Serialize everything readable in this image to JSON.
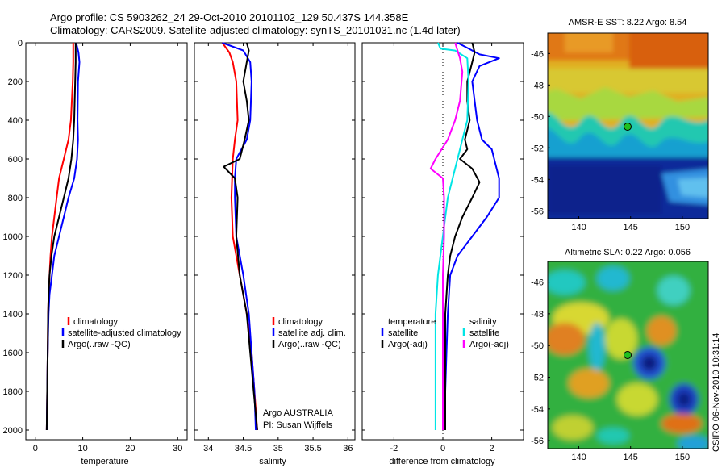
{
  "titles": {
    "line1": "Argo profile: CS 5903262_24 29-Oct-2010 20101102_129 50.437S 144.358E",
    "line2": "Climatology: CARS2009. Satellite-adjusted climatology: synTS_20101031.nc (1.4d later)"
  },
  "colors": {
    "climatology": "#ff0000",
    "satellite": "#0000ff",
    "argo": "#000000",
    "argo_adj_salinity": "#ff00ff",
    "satellite_salinity": "#00e5e5",
    "zero_line": "#000000"
  },
  "chart_data": [
    {
      "type": "line",
      "panel": "temperature",
      "xlabel": "temperature",
      "xlim": [
        -2,
        32
      ],
      "ylim": [
        2050,
        0
      ],
      "y_reversed": true,
      "xticks": [
        "0",
        "10",
        "20",
        "30"
      ],
      "yticks": [
        "0",
        "200",
        "400",
        "600",
        "800",
        "1000",
        "1200",
        "1400",
        "1600",
        "1800",
        "2000"
      ],
      "legend": {
        "placement": "lower-left",
        "entries": [
          "climatology",
          "satellite-adjusted climatology",
          "Argo(..raw -QC)"
        ]
      },
      "series": [
        {
          "name": "climatology",
          "color_key": "climatology",
          "points": [
            [
              8.0,
              0
            ],
            [
              8.0,
              100
            ],
            [
              7.9,
              200
            ],
            [
              7.5,
              400
            ],
            [
              7.0,
              500
            ],
            [
              6.0,
              600
            ],
            [
              5.0,
              700
            ],
            [
              4.5,
              800
            ],
            [
              4.0,
              900
            ],
            [
              3.5,
              1000
            ],
            [
              3.2,
              1100
            ],
            [
              3.0,
              1200
            ],
            [
              2.8,
              1300
            ],
            [
              2.7,
              1400
            ],
            [
              2.6,
              1600
            ],
            [
              2.5,
              1800
            ],
            [
              2.4,
              2000
            ]
          ]
        },
        {
          "name": "satellite-adjusted climatology",
          "color_key": "satellite",
          "points": [
            [
              8.6,
              0
            ],
            [
              9.1,
              50
            ],
            [
              9.3,
              100
            ],
            [
              9.0,
              200
            ],
            [
              8.9,
              400
            ],
            [
              9.0,
              500
            ],
            [
              8.8,
              600
            ],
            [
              8.2,
              700
            ],
            [
              7.0,
              800
            ],
            [
              6.0,
              900
            ],
            [
              5.0,
              1000
            ],
            [
              4.0,
              1100
            ],
            [
              3.5,
              1200
            ],
            [
              3.0,
              1300
            ],
            [
              2.8,
              1400
            ],
            [
              2.6,
              1600
            ],
            [
              2.5,
              1800
            ],
            [
              2.4,
              2000
            ]
          ]
        },
        {
          "name": "Argo(..raw -QC)",
          "color_key": "argo",
          "points": [
            [
              8.5,
              0
            ],
            [
              8.5,
              100
            ],
            [
              8.4,
              200
            ],
            [
              8.2,
              400
            ],
            [
              8.0,
              500
            ],
            [
              7.6,
              600
            ],
            [
              7.0,
              700
            ],
            [
              6.0,
              800
            ],
            [
              5.0,
              900
            ],
            [
              4.0,
              1000
            ],
            [
              3.4,
              1100
            ],
            [
              3.0,
              1200
            ],
            [
              2.8,
              1300
            ],
            [
              2.7,
              1400
            ],
            [
              2.6,
              1600
            ],
            [
              2.5,
              1800
            ],
            [
              2.4,
              2000
            ]
          ]
        }
      ]
    },
    {
      "type": "line",
      "panel": "salinity",
      "xlabel": "salinity",
      "xlim": [
        33.8,
        36.1
      ],
      "ylim": [
        2050,
        0
      ],
      "y_reversed": true,
      "xticks": [
        "34",
        "34.5",
        "35",
        "35.5",
        "36"
      ],
      "legend": {
        "placement": "lower-left",
        "entries": [
          "climatology",
          "satellite adj. clim.",
          "Argo(..raw -QC)"
        ]
      },
      "annotations": [
        "Argo AUSTRALIA",
        "PI: Susan Wijffels"
      ],
      "series": [
        {
          "name": "climatology",
          "color_key": "climatology",
          "points": [
            [
              34.2,
              0
            ],
            [
              34.3,
              50
            ],
            [
              34.35,
              100
            ],
            [
              34.4,
              200
            ],
            [
              34.42,
              400
            ],
            [
              34.38,
              500
            ],
            [
              34.35,
              600
            ],
            [
              34.33,
              800
            ],
            [
              34.35,
              1000
            ],
            [
              34.45,
              1200
            ],
            [
              34.55,
              1400
            ],
            [
              34.62,
              1600
            ],
            [
              34.66,
              1800
            ],
            [
              34.7,
              2000
            ]
          ]
        },
        {
          "name": "satellite adj. clim.",
          "color_key": "satellite",
          "points": [
            [
              34.2,
              0
            ],
            [
              34.5,
              40
            ],
            [
              34.6,
              100
            ],
            [
              34.62,
              200
            ],
            [
              34.6,
              400
            ],
            [
              34.55,
              500
            ],
            [
              34.4,
              600
            ],
            [
              34.38,
              700
            ],
            [
              34.38,
              800
            ],
            [
              34.4,
              1000
            ],
            [
              34.5,
              1200
            ],
            [
              34.58,
              1400
            ],
            [
              34.62,
              1600
            ],
            [
              34.66,
              1800
            ],
            [
              34.68,
              2000
            ]
          ]
        },
        {
          "name": "Argo(..raw -QC)",
          "color_key": "argo",
          "points": [
            [
              34.55,
              0
            ],
            [
              34.58,
              40
            ],
            [
              34.55,
              100
            ],
            [
              34.5,
              200
            ],
            [
              34.55,
              300
            ],
            [
              34.58,
              400
            ],
            [
              34.52,
              500
            ],
            [
              34.45,
              600
            ],
            [
              34.22,
              640
            ],
            [
              34.38,
              700
            ],
            [
              34.42,
              800
            ],
            [
              34.4,
              1000
            ],
            [
              34.45,
              1200
            ],
            [
              34.55,
              1400
            ],
            [
              34.6,
              1600
            ],
            [
              34.65,
              1800
            ],
            [
              34.7,
              2000
            ]
          ]
        }
      ]
    },
    {
      "type": "line",
      "panel": "difference",
      "xlabel": "difference from climatology",
      "xlim": [
        -3.3,
        3.3
      ],
      "ylim": [
        2050,
        0
      ],
      "y_reversed": true,
      "xticks": [
        "-2",
        "0",
        "2"
      ],
      "legend": {
        "placement": "lower-center",
        "groups": [
          {
            "header": "temperature",
            "entries": [
              "satellite",
              "Argo(-adj)"
            ]
          },
          {
            "header": "salinity",
            "entries": [
              "satellite",
              "Argo(-adj)"
            ]
          }
        ]
      },
      "series": [
        {
          "name": "temperature satellite",
          "color_key": "satellite",
          "points": [
            [
              0.6,
              0
            ],
            [
              0.9,
              20
            ],
            [
              1.5,
              60
            ],
            [
              2.3,
              80
            ],
            [
              1.5,
              120
            ],
            [
              1.2,
              200
            ],
            [
              1.4,
              400
            ],
            [
              1.6,
              500
            ],
            [
              2.0,
              550
            ],
            [
              2.3,
              700
            ],
            [
              2.3,
              800
            ],
            [
              1.8,
              900
            ],
            [
              1.2,
              1000
            ],
            [
              0.6,
              1100
            ],
            [
              0.3,
              1200
            ],
            [
              0.2,
              1400
            ],
            [
              0.15,
              1600
            ],
            [
              0.1,
              1800
            ],
            [
              0.1,
              2000
            ]
          ]
        },
        {
          "name": "temperature Argo(-adj)",
          "color_key": "argo",
          "points": [
            [
              1.2,
              0
            ],
            [
              1.3,
              50
            ],
            [
              1.2,
              100
            ],
            [
              1.0,
              200
            ],
            [
              1.0,
              300
            ],
            [
              1.1,
              400
            ],
            [
              0.9,
              500
            ],
            [
              1.0,
              550
            ],
            [
              0.7,
              600
            ],
            [
              1.2,
              650
            ],
            [
              1.5,
              720
            ],
            [
              1.2,
              800
            ],
            [
              0.8,
              900
            ],
            [
              0.5,
              1000
            ],
            [
              0.3,
              1100
            ],
            [
              0.2,
              1200
            ],
            [
              0.1,
              1400
            ],
            [
              0.1,
              1600
            ],
            [
              0.1,
              1800
            ],
            [
              0.1,
              2000
            ]
          ]
        },
        {
          "name": "salinity satellite",
          "color_key": "satellite_salinity",
          "points": [
            [
              -0.2,
              0
            ],
            [
              -0.1,
              30
            ],
            [
              0.5,
              40
            ],
            [
              1.0,
              80
            ],
            [
              1.05,
              200
            ],
            [
              1.0,
              400
            ],
            [
              0.8,
              500
            ],
            [
              0.6,
              600
            ],
            [
              0.4,
              700
            ],
            [
              0.2,
              800
            ],
            [
              0.0,
              1000
            ],
            [
              -0.2,
              1200
            ],
            [
              -0.3,
              1400
            ],
            [
              -0.3,
              1600
            ],
            [
              -0.3,
              1800
            ],
            [
              -0.3,
              2000
            ]
          ]
        },
        {
          "name": "salinity Argo(-adj)",
          "color_key": "argo_adj_salinity",
          "points": [
            [
              0.5,
              0
            ],
            [
              0.7,
              80
            ],
            [
              0.8,
              150
            ],
            [
              0.7,
              300
            ],
            [
              0.5,
              400
            ],
            [
              0.2,
              500
            ],
            [
              -0.3,
              600
            ],
            [
              -0.5,
              650
            ],
            [
              0.0,
              700
            ],
            [
              0.05,
              800
            ],
            [
              0.05,
              1000
            ],
            [
              0.0,
              1200
            ],
            [
              0.0,
              1400
            ],
            [
              0.0,
              1600
            ],
            [
              0.0,
              1800
            ],
            [
              0.0,
              2000
            ]
          ]
        }
      ]
    },
    {
      "type": "heatmap",
      "panel": "sst-map",
      "title": "AMSR-E SST: 8.22 Argo: 8.54",
      "xticks": [
        "140",
        "145",
        "150"
      ],
      "yticks": [
        "-46",
        "-48",
        "-50",
        "-52",
        "-54",
        "-56"
      ],
      "xlim": [
        137,
        152.5
      ],
      "ylim": [
        -56.5,
        -44.7
      ],
      "marker": {
        "lon": 144.358,
        "lat": -50.437
      }
    },
    {
      "type": "heatmap",
      "panel": "sla-map",
      "title": "Altimetric SLA: 0.22 Argo: 0.056",
      "xticks": [
        "140",
        "145",
        "150"
      ],
      "yticks": [
        "-46",
        "-48",
        "-50",
        "-52",
        "-54",
        "-56"
      ],
      "xlim": [
        137,
        152.5
      ],
      "ylim": [
        -56.5,
        -44.7
      ],
      "marker": {
        "lon": 144.358,
        "lat": -50.437
      }
    }
  ],
  "legends": {
    "temp": [
      "climatology",
      "satellite-adjusted climatology",
      "Argo(..raw -QC)"
    ],
    "sal": [
      "climatology",
      "satellite adj. clim.",
      "Argo(..raw -QC)"
    ],
    "diff_temp_header": "temperature",
    "diff_sal_header": "salinity",
    "diff_temp": [
      "satellite",
      "Argo(-adj)"
    ],
    "diff_sal": [
      "satellite",
      "Argo(-adj)"
    ]
  },
  "annotation": {
    "line1": "Argo AUSTRALIA",
    "line2": "PI: Susan Wijffels"
  },
  "stamp": "CSIRO 06-Nov-2010 10:31:14"
}
